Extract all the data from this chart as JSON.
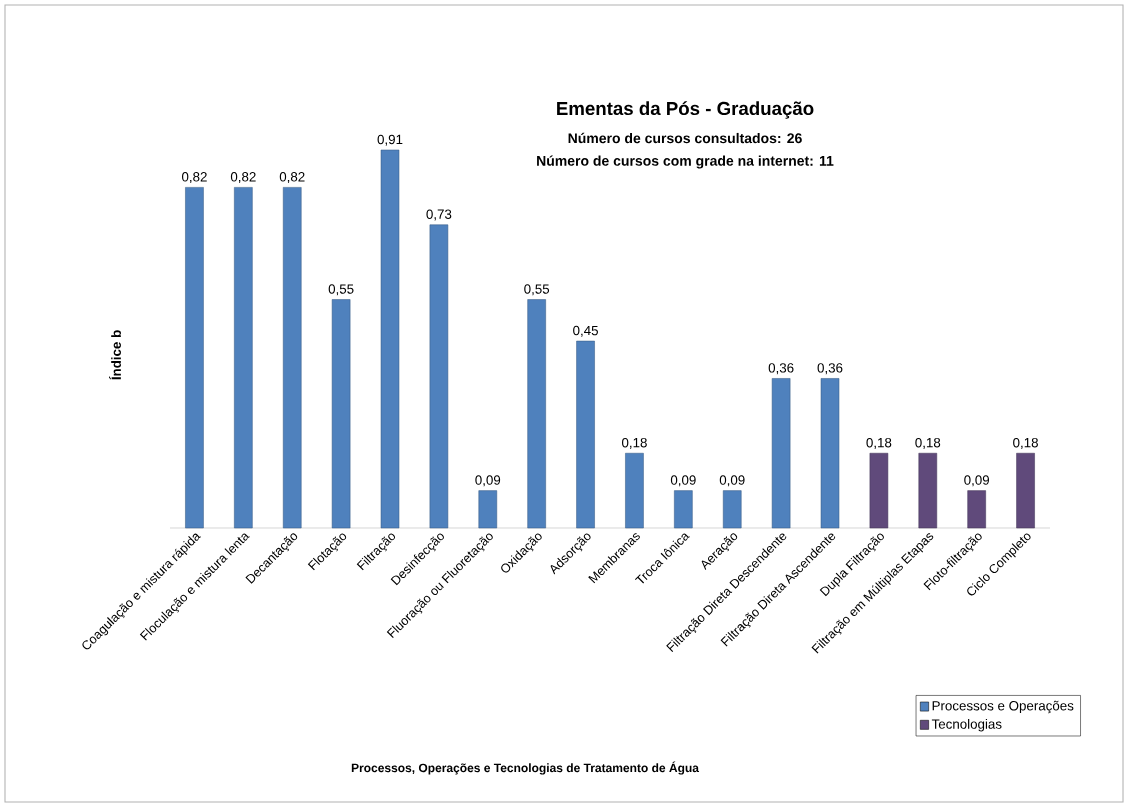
{
  "chart_data": {
    "type": "bar",
    "title": "Ementas da Pós - Graduação",
    "subtitle": "Número de cursos consultados: 26",
    "annotations": [
      "Número de cursos com grade na internet: 11",
      "Processos, Operações e Tecnologias  de Tratamento de Água"
    ],
    "ylabel": "Índice b",
    "categories": [
      "Coagulação e mistura rápida",
      "Floculação e mistura lenta",
      "Decantação",
      "Flotação",
      "Filtração",
      "Desinfecção",
      "Fluoração ou Fluoretação",
      "Oxidação",
      "Adsorção",
      "Membranas",
      "Troca Iônica",
      "Aeração",
      "Filtração Direta Descendente",
      "Filtração Direta Ascendente",
      "Dupla Filtração",
      "Filtração em Múltiplas  Etapas",
      "Floto-filtração",
      "Ciclo Completo"
    ],
    "series": [
      {
        "name": "Processos  e Operações",
        "color": "#4f81bd",
        "values": [
          0.82,
          0.82,
          0.82,
          0.55,
          0.91,
          0.73,
          0.09,
          0.55,
          0.45,
          0.18,
          0.09,
          0.09,
          0.36,
          0.36,
          null,
          null,
          null,
          null
        ],
        "value_labels": [
          "0,82",
          "0,82",
          "0,82",
          "0,55",
          "0,91",
          "0,73",
          "0,09",
          "0,55",
          "0,45",
          "0,18",
          "0,09",
          "0,09",
          "0,36",
          "0,36",
          null,
          null,
          null,
          null
        ]
      },
      {
        "name": "Tecnologias",
        "color": "#604a7b",
        "values": [
          null,
          null,
          null,
          null,
          null,
          null,
          null,
          null,
          null,
          null,
          null,
          null,
          null,
          null,
          0.18,
          0.18,
          0.09,
          0.18
        ],
        "value_labels": [
          null,
          null,
          null,
          null,
          null,
          null,
          null,
          null,
          null,
          null,
          null,
          null,
          null,
          null,
          "0,18",
          "0,18",
          "0,09",
          "0,18"
        ]
      }
    ],
    "legend": "bottom right",
    "tick_labels": "x"
  }
}
